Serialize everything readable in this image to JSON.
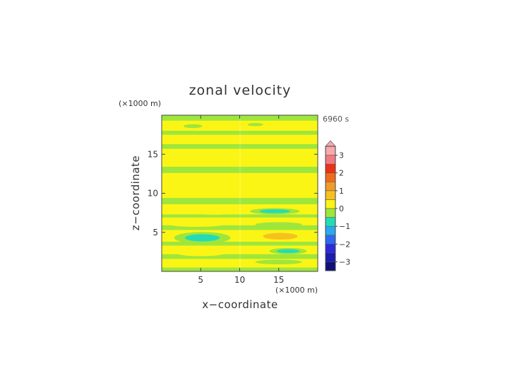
{
  "chart_data": {
    "type": "heatmap",
    "title": "zonal velocity",
    "xlabel": "x−coordinate",
    "ylabel": "z−coordinate",
    "x_unit": "(×1000 m)",
    "y_unit": "(×1000 m)",
    "time_label": "6960 s",
    "xlim": [
      0,
      20
    ],
    "ylim": [
      0,
      20
    ],
    "x_ticks": [
      5,
      10,
      15
    ],
    "x_tick_labels": [
      "5",
      "10",
      "15"
    ],
    "y_ticks": [
      5,
      10,
      15
    ],
    "y_tick_labels": [
      "5",
      "10",
      "15"
    ],
    "colorbar": {
      "range": [
        -3.5,
        3.5
      ],
      "extend_max": true,
      "ticks": [
        3,
        2,
        1,
        0,
        -1,
        -2,
        -3
      ],
      "tick_labels": [
        "3",
        "2",
        "1",
        "0",
        "−1",
        "−2",
        "−3"
      ],
      "levels": [
        {
          "min": -3.5,
          "max": -3.0,
          "color": "#10107a"
        },
        {
          "min": -3.0,
          "max": -2.5,
          "color": "#1c1cb0"
        },
        {
          "min": -2.5,
          "max": -2.0,
          "color": "#2b2bdc"
        },
        {
          "min": -2.0,
          "max": -1.5,
          "color": "#2f68f0"
        },
        {
          "min": -1.5,
          "max": -1.0,
          "color": "#2aa9ee"
        },
        {
          "min": -1.0,
          "max": -0.5,
          "color": "#23dcb6"
        },
        {
          "min": -0.5,
          "max": 0.0,
          "color": "#9ee63c"
        },
        {
          "min": 0.0,
          "max": 0.5,
          "color": "#fbf515"
        },
        {
          "min": 0.5,
          "max": 1.0,
          "color": "#f6c11e"
        },
        {
          "min": 1.0,
          "max": 1.5,
          "color": "#f09a2b"
        },
        {
          "min": 1.5,
          "max": 2.0,
          "color": "#f06a1c"
        },
        {
          "min": 2.0,
          "max": 2.5,
          "color": "#ee3018"
        },
        {
          "min": 2.5,
          "max": 3.0,
          "color": "#f07a80"
        },
        {
          "min": 3.0,
          "max": 3.5,
          "color": "#f7a9ad"
        }
      ]
    },
    "field": {
      "background_value": 0.15,
      "bands": [
        {
          "z": [
            0.0,
            0.5
          ],
          "value": -0.3
        },
        {
          "z": [
            1.6,
            2.2
          ],
          "value": -0.2
        },
        {
          "z": [
            3.3,
            3.8
          ],
          "value": -0.2
        },
        {
          "z": [
            5.3,
            5.9
          ],
          "value": -0.2
        },
        {
          "z": [
            6.9,
            7.3
          ],
          "value": -0.3
        },
        {
          "z": [
            8.6,
            9.4
          ],
          "value": -0.3
        },
        {
          "z": [
            12.6,
            13.4
          ],
          "value": -0.2
        },
        {
          "z": [
            15.7,
            16.3
          ],
          "value": -0.2
        },
        {
          "z": [
            17.5,
            18.0
          ],
          "value": -0.2
        },
        {
          "z": [
            19.3,
            20.0
          ],
          "value": -0.2
        }
      ],
      "blobs": [
        {
          "x": 5.2,
          "z": 4.3,
          "rx": 3.6,
          "rz": 0.75,
          "value": -1.3
        },
        {
          "x": 5.0,
          "z": 2.4,
          "rx": 3.3,
          "rz": 0.45,
          "value": 0.8
        },
        {
          "x": 4.5,
          "z": 6.1,
          "rx": 3.8,
          "rz": 0.4,
          "value": 0.7
        },
        {
          "x": 6.8,
          "z": 7.7,
          "rx": 3.5,
          "rz": 0.45,
          "value": 0.9
        },
        {
          "x": 5.0,
          "z": 1.0,
          "rx": 3.0,
          "rz": 0.3,
          "value": 0.6
        },
        {
          "x": 4.0,
          "z": 18.6,
          "rx": 1.2,
          "rz": 0.25,
          "value": -0.9
        },
        {
          "x": 15.2,
          "z": 4.5,
          "rx": 3.6,
          "rz": 0.7,
          "value": 1.0
        },
        {
          "x": 16.2,
          "z": 2.6,
          "rx": 2.4,
          "rz": 0.4,
          "value": -1.3
        },
        {
          "x": 14.5,
          "z": 7.7,
          "rx": 3.2,
          "rz": 0.4,
          "value": -1.0
        },
        {
          "x": 15.0,
          "z": 6.0,
          "rx": 3.0,
          "rz": 0.3,
          "value": -0.6
        },
        {
          "x": 15.0,
          "z": 1.2,
          "rx": 3.0,
          "rz": 0.3,
          "value": -0.6
        },
        {
          "x": 16.5,
          "z": 18.8,
          "rx": 1.3,
          "rz": 0.25,
          "value": 0.8
        },
        {
          "x": 12.0,
          "z": 18.8,
          "rx": 1.0,
          "rz": 0.2,
          "value": -0.4
        }
      ]
    }
  }
}
